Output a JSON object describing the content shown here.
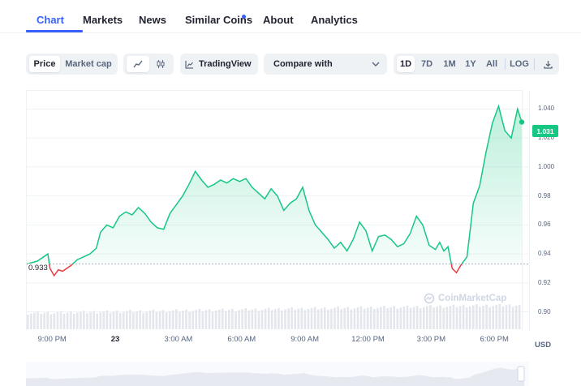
{
  "tabs": [
    {
      "label": "Chart",
      "active": true
    },
    {
      "label": "Markets"
    },
    {
      "label": "News"
    },
    {
      "label": "Similar Coins",
      "has_dot": true
    },
    {
      "label": "About"
    },
    {
      "label": "Analytics"
    }
  ],
  "toolbar": {
    "price_label": "Price",
    "marketcap_label": "Market cap",
    "line_icon": "line-chart-icon",
    "candle_icon": "candlestick-icon",
    "tradingview_label": "TradingView",
    "compare_label": "Compare with",
    "ranges": [
      "1D",
      "7D",
      "1M",
      "1Y",
      "All"
    ],
    "selected_range": "1D",
    "log_label": "LOG",
    "download_icon": "download-icon"
  },
  "chart": {
    "current_price_label": "1.031",
    "open_price_label": "0.933",
    "currency_label": "USD",
    "watermark": "CoinMarketCap",
    "colors": {
      "up": "#16c784",
      "down": "#ea3943",
      "accent": "#3861fb"
    }
  },
  "chart_data": {
    "type": "line",
    "yticks": [
      "1.040",
      "1.020",
      "1.000",
      "0.98",
      "0.96",
      "0.94",
      "0.92",
      "0.90"
    ],
    "ytick_values": [
      1.04,
      1.02,
      1.0,
      0.98,
      0.96,
      0.94,
      0.92,
      0.9
    ],
    "xticks": [
      "9:00 PM",
      "23",
      "3:00 AM",
      "6:00 AM",
      "9:00 AM",
      "12:00 PM",
      "3:00 PM",
      "6:00 PM"
    ],
    "xtick_hours": [
      21,
      24,
      27,
      30,
      33,
      36,
      39,
      42
    ],
    "ylim": [
      0.888,
      1.052
    ],
    "xlim": [
      19.8,
      43.3
    ],
    "baseline": 0.933,
    "x": [
      19.8,
      20.3,
      20.8,
      20.9,
      21.1,
      21.3,
      21.5,
      21.9,
      22.2,
      22.5,
      22.8,
      23.1,
      23.3,
      23.6,
      23.9,
      24.2,
      24.5,
      24.8,
      25.1,
      25.4,
      25.7,
      26.0,
      26.3,
      26.6,
      26.9,
      27.2,
      27.5,
      27.8,
      28.1,
      28.4,
      28.7,
      29.0,
      29.3,
      29.6,
      29.9,
      30.2,
      30.5,
      30.8,
      31.1,
      31.4,
      31.7,
      32.0,
      32.3,
      32.6,
      32.9,
      33.2,
      33.5,
      33.8,
      34.1,
      34.4,
      34.7,
      35.0,
      35.3,
      35.6,
      35.9,
      36.2,
      36.5,
      36.8,
      37.1,
      37.4,
      37.7,
      38.0,
      38.3,
      38.6,
      38.9,
      39.2,
      39.4,
      39.6,
      39.8,
      40.0,
      40.2,
      40.4,
      40.7,
      41.0,
      41.3,
      41.6,
      41.9,
      42.2,
      42.5,
      42.8,
      43.1,
      43.3
    ],
    "y": [
      0.933,
      0.935,
      0.94,
      0.93,
      0.925,
      0.929,
      0.928,
      0.932,
      0.936,
      0.938,
      0.94,
      0.944,
      0.955,
      0.96,
      0.958,
      0.966,
      0.969,
      0.967,
      0.972,
      0.968,
      0.962,
      0.958,
      0.957,
      0.968,
      0.974,
      0.98,
      0.988,
      0.997,
      0.991,
      0.986,
      0.988,
      0.991,
      0.989,
      0.992,
      0.99,
      0.992,
      0.986,
      0.982,
      0.978,
      0.985,
      0.98,
      0.97,
      0.975,
      0.978,
      0.986,
      0.97,
      0.96,
      0.955,
      0.95,
      0.944,
      0.948,
      0.942,
      0.95,
      0.962,
      0.956,
      0.942,
      0.952,
      0.953,
      0.95,
      0.945,
      0.947,
      0.954,
      0.966,
      0.96,
      0.946,
      0.943,
      0.948,
      0.942,
      0.945,
      0.93,
      0.927,
      0.932,
      0.938,
      0.975,
      0.987,
      1.01,
      1.03,
      1.042,
      1.025,
      1.02,
      1.04,
      1.031
    ]
  }
}
